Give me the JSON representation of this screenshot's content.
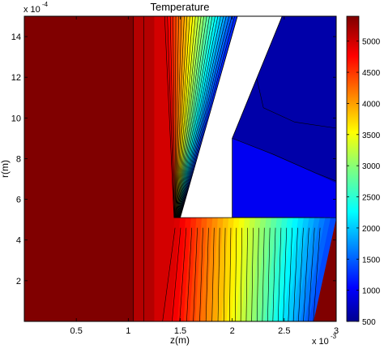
{
  "chart_data": {
    "type": "contour",
    "title": "Temperature",
    "xlabel": "z(m)",
    "ylabel": "r(m)",
    "x_multiplier": "x 10",
    "x_exponent": "-3",
    "y_multiplier": "x 10",
    "y_exponent": "-4",
    "xlim": [
      0,
      3
    ],
    "ylim": [
      0,
      15
    ],
    "x_ticks": [
      0.5,
      1,
      1.5,
      2,
      2.5,
      3
    ],
    "x_tick_labels": [
      "0.5",
      "1",
      "1.5",
      "2",
      "2.5",
      "3"
    ],
    "y_ticks": [
      2,
      4,
      6,
      8,
      10,
      12,
      14
    ],
    "y_tick_labels": [
      "2",
      "4",
      "6",
      "8",
      "10",
      "12",
      "14"
    ],
    "colorbar": {
      "colormap": "jet",
      "range": [
        500,
        5400
      ],
      "ticks": [
        500,
        1000,
        1500,
        2000,
        2500,
        3000,
        3500,
        4000,
        4500,
        5000
      ],
      "tick_labels": [
        "500",
        "1000",
        "1500",
        "2000",
        "2500",
        "3000",
        "3500",
        "4000",
        "4500",
        "5000"
      ]
    },
    "electrode_region": {
      "description_color": "#ffffff",
      "polygon_zr": [
        [
          1.5,
          5.1
        ],
        [
          2.0,
          5.1
        ],
        [
          2.0,
          9.0
        ],
        [
          2.48,
          15
        ],
        [
          2.05,
          15
        ]
      ]
    },
    "field_levels": {
      "arc_core_max": 5400,
      "min": 500,
      "hot_plasma_bands": [
        {
          "z_from": 0.0,
          "z_to": 1.05,
          "T": 5400
        },
        {
          "z_from": 1.05,
          "z_to": 1.15,
          "T": 5150
        }
      ]
    }
  }
}
